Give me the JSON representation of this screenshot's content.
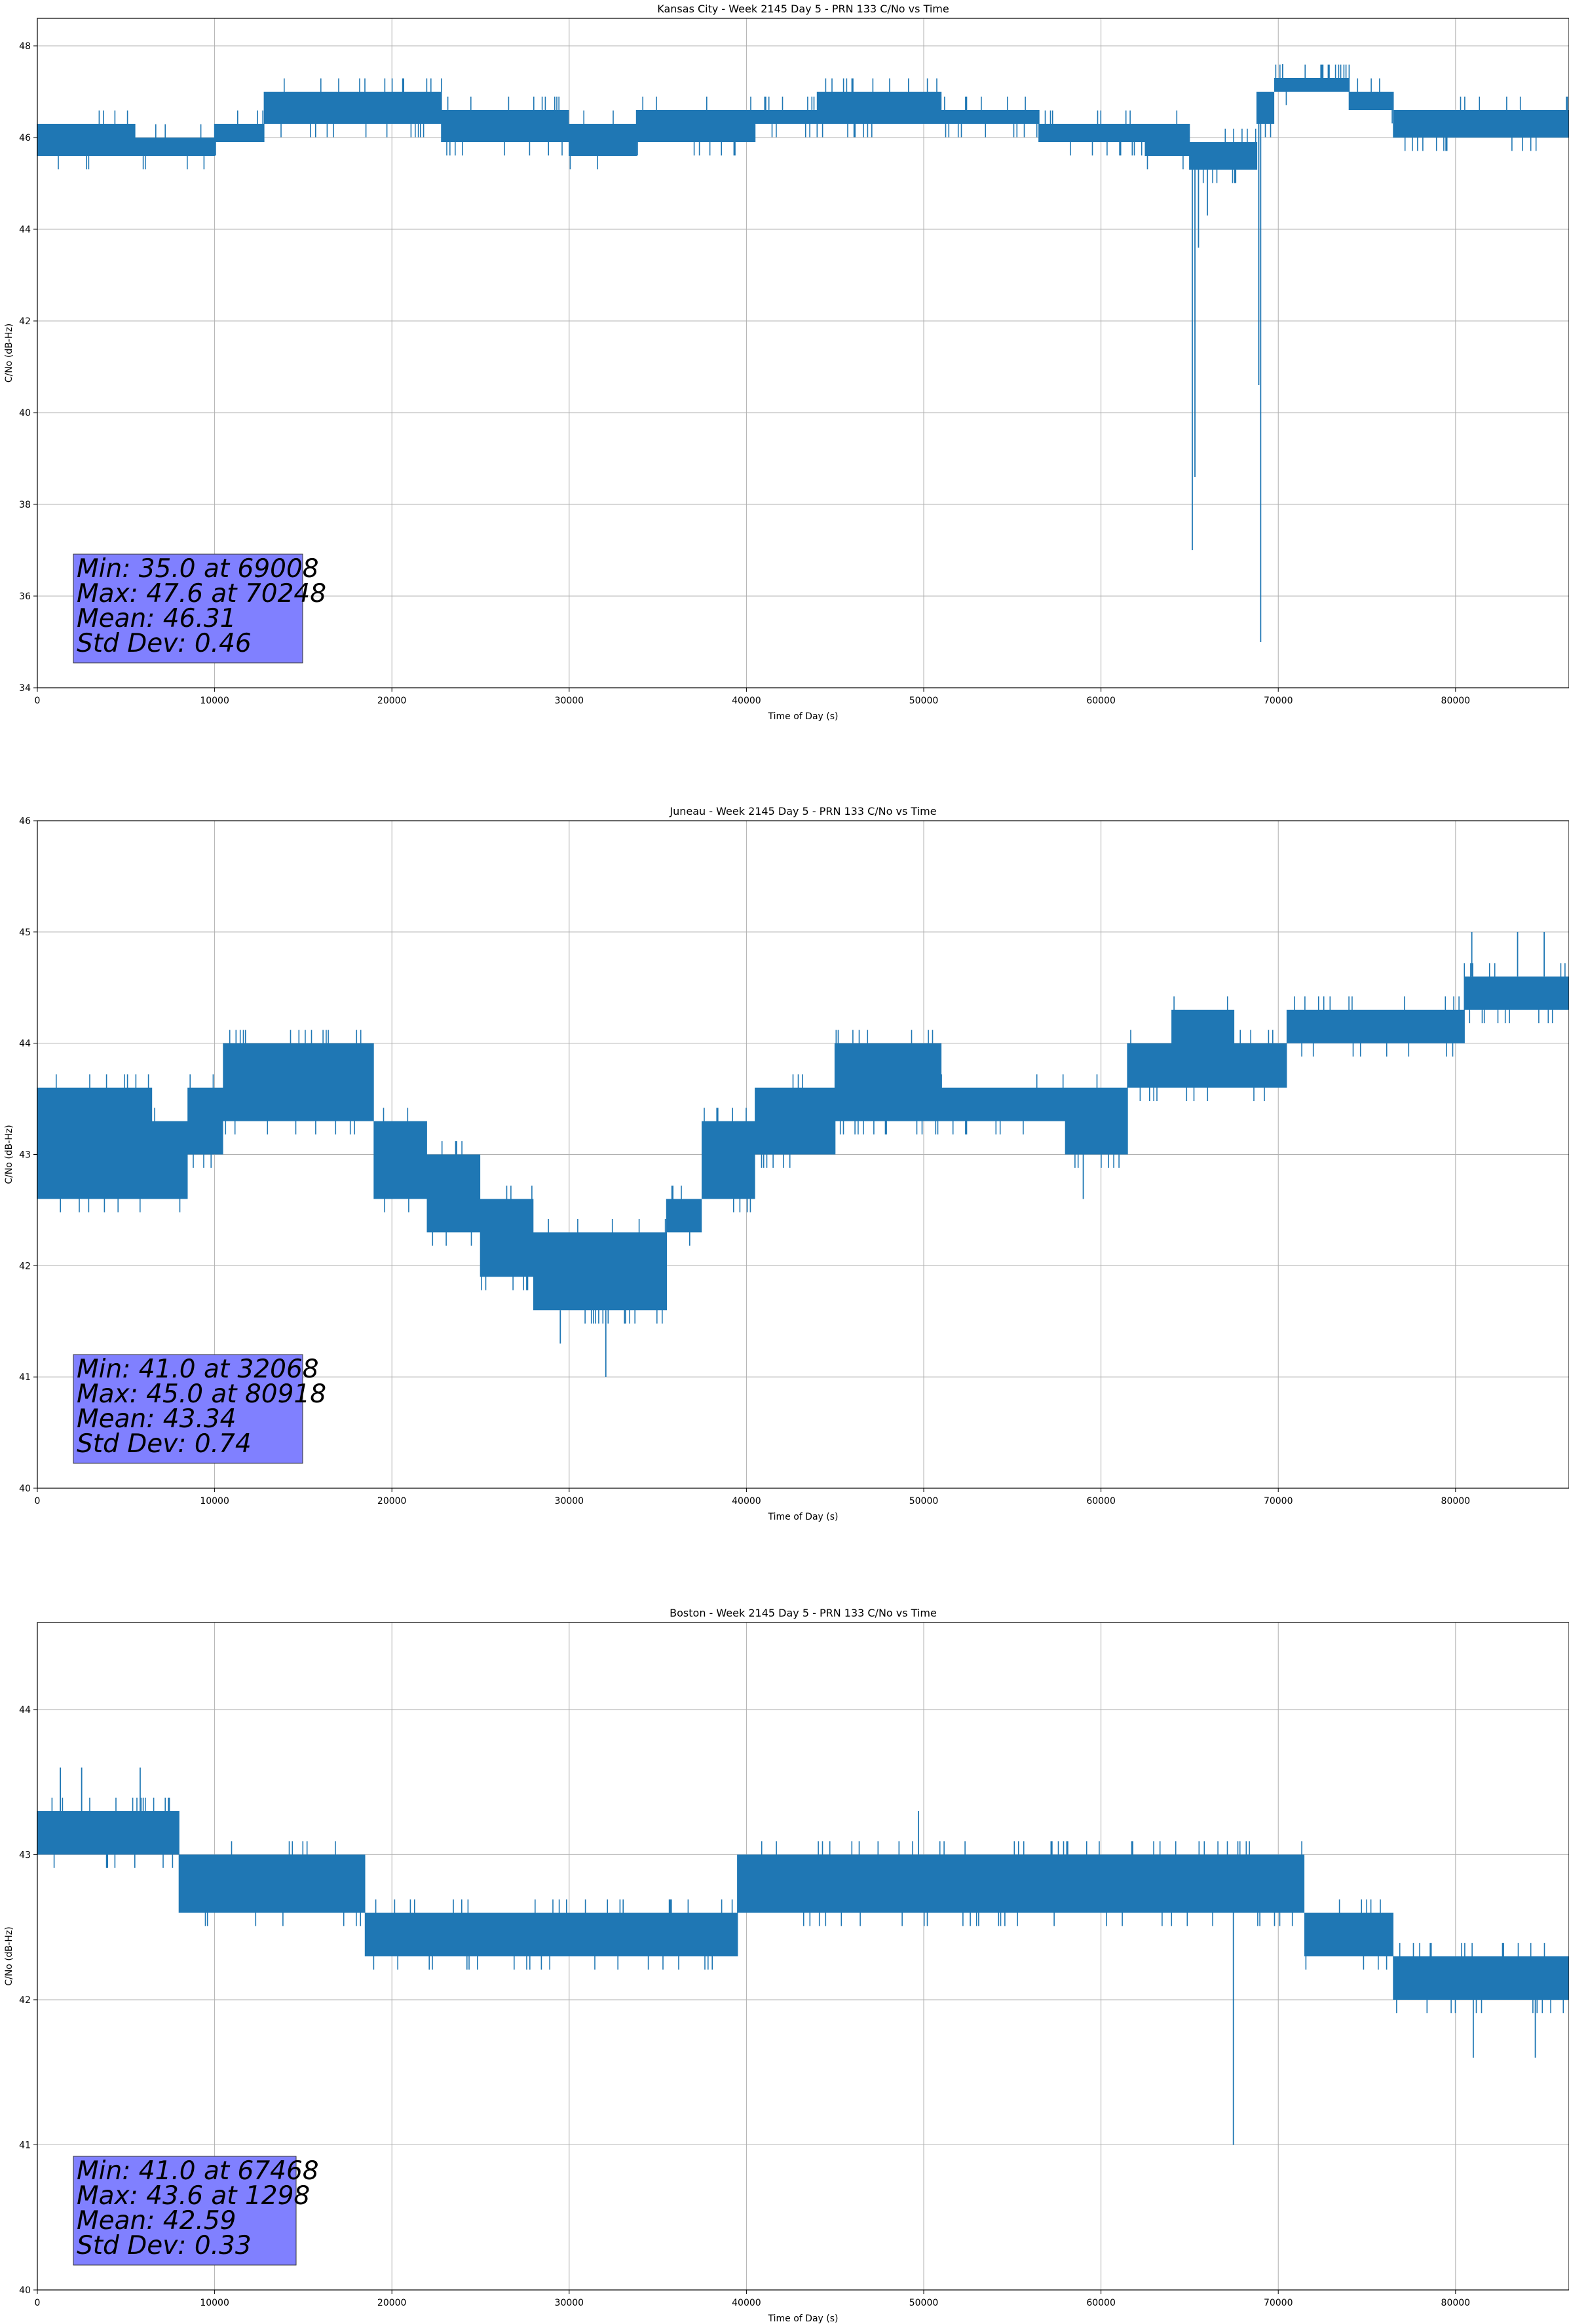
{
  "chart_data": [
    {
      "type": "line",
      "title": "Kansas City - Week 2145 Day 5 - PRN 133 C/No vs Time",
      "xlabel": "Time of Day (s)",
      "ylabel": "C/No (dB-Hz)",
      "xlim": [
        0,
        86400
      ],
      "ylim": [
        34,
        48.6
      ],
      "xticks": [
        0,
        10000,
        20000,
        30000,
        40000,
        50000,
        60000,
        70000,
        80000
      ],
      "yticks": [
        34,
        36,
        38,
        40,
        42,
        44,
        46,
        48
      ],
      "grid": true,
      "series_color": "#1f77b4",
      "base_levels": [
        {
          "start": 0,
          "end": 5500,
          "low": 45.6,
          "high": 46.3
        },
        {
          "start": 5500,
          "end": 10000,
          "low": 45.6,
          "high": 46.0
        },
        {
          "start": 10000,
          "end": 12800,
          "low": 45.9,
          "high": 46.3
        },
        {
          "start": 12800,
          "end": 22800,
          "low": 46.3,
          "high": 47.0
        },
        {
          "start": 22800,
          "end": 30000,
          "low": 45.9,
          "high": 46.6
        },
        {
          "start": 30000,
          "end": 33800,
          "low": 45.6,
          "high": 46.3
        },
        {
          "start": 33800,
          "end": 40500,
          "low": 45.9,
          "high": 46.6
        },
        {
          "start": 40500,
          "end": 44000,
          "low": 46.3,
          "high": 46.6
        },
        {
          "start": 44000,
          "end": 51000,
          "low": 46.3,
          "high": 47.0
        },
        {
          "start": 51000,
          "end": 56500,
          "low": 46.3,
          "high": 46.6
        },
        {
          "start": 56500,
          "end": 62500,
          "low": 45.9,
          "high": 46.3
        },
        {
          "start": 62500,
          "end": 65000,
          "low": 45.6,
          "high": 46.3
        },
        {
          "start": 65000,
          "end": 68800,
          "low": 45.3,
          "high": 45.9
        },
        {
          "start": 68800,
          "end": 69800,
          "low": 46.3,
          "high": 47.0
        },
        {
          "start": 69800,
          "end": 74000,
          "low": 47.0,
          "high": 47.3
        },
        {
          "start": 74000,
          "end": 76500,
          "low": 46.6,
          "high": 47.0
        },
        {
          "start": 76500,
          "end": 86400,
          "low": 46.0,
          "high": 46.6
        }
      ],
      "dips": [
        {
          "x": 65150,
          "value": 37.0
        },
        {
          "x": 65300,
          "value": 38.6
        },
        {
          "x": 65500,
          "value": 43.6
        },
        {
          "x": 66000,
          "value": 44.3
        },
        {
          "x": 68900,
          "value": 40.6
        },
        {
          "x": 69008,
          "value": 35.0
        }
      ],
      "peaks": [
        {
          "x": 70248,
          "value": 47.6
        }
      ],
      "stats_box": [
        "Min: 35.0 at 69008",
        "Max: 47.6 at 70248",
        "Mean: 46.31",
        "Std Dev: 0.46"
      ]
    },
    {
      "type": "line",
      "title": "Juneau - Week 2145 Day 5 - PRN 133 C/No vs Time",
      "xlabel": "Time of Day (s)",
      "ylabel": "C/No (dB-Hz)",
      "xlim": [
        0,
        86400
      ],
      "ylim": [
        40,
        46
      ],
      "xticks": [
        0,
        10000,
        20000,
        30000,
        40000,
        50000,
        60000,
        70000,
        80000
      ],
      "yticks": [
        40,
        41,
        42,
        43,
        44,
        45,
        46
      ],
      "grid": true,
      "series_color": "#1f77b4",
      "base_levels": [
        {
          "start": 0,
          "end": 6500,
          "low": 42.6,
          "high": 43.6
        },
        {
          "start": 6500,
          "end": 8500,
          "low": 42.6,
          "high": 43.3
        },
        {
          "start": 8500,
          "end": 10500,
          "low": 43.0,
          "high": 43.6
        },
        {
          "start": 10500,
          "end": 19000,
          "low": 43.3,
          "high": 44.0
        },
        {
          "start": 19000,
          "end": 22000,
          "low": 42.6,
          "high": 43.3
        },
        {
          "start": 22000,
          "end": 25000,
          "low": 42.3,
          "high": 43.0
        },
        {
          "start": 25000,
          "end": 28000,
          "low": 41.9,
          "high": 42.6
        },
        {
          "start": 28000,
          "end": 33000,
          "low": 41.6,
          "high": 42.3
        },
        {
          "start": 33000,
          "end": 35500,
          "low": 41.6,
          "high": 42.3
        },
        {
          "start": 35500,
          "end": 37500,
          "low": 42.3,
          "high": 42.6
        },
        {
          "start": 37500,
          "end": 40500,
          "low": 42.6,
          "high": 43.3
        },
        {
          "start": 40500,
          "end": 45000,
          "low": 43.0,
          "high": 43.6
        },
        {
          "start": 45000,
          "end": 51000,
          "low": 43.3,
          "high": 44.0
        },
        {
          "start": 51000,
          "end": 58000,
          "low": 43.3,
          "high": 43.6
        },
        {
          "start": 58000,
          "end": 61500,
          "low": 43.0,
          "high": 43.6
        },
        {
          "start": 61500,
          "end": 64000,
          "low": 43.6,
          "high": 44.0
        },
        {
          "start": 64000,
          "end": 67500,
          "low": 43.6,
          "high": 44.3
        },
        {
          "start": 67500,
          "end": 70500,
          "low": 43.6,
          "high": 44.0
        },
        {
          "start": 70500,
          "end": 80500,
          "low": 44.0,
          "high": 44.3
        },
        {
          "start": 80500,
          "end": 86400,
          "low": 44.3,
          "high": 44.6
        }
      ],
      "dips": [
        {
          "x": 29500,
          "value": 41.3
        },
        {
          "x": 32068,
          "value": 41.0
        },
        {
          "x": 59000,
          "value": 42.6
        }
      ],
      "peaks": [
        {
          "x": 80918,
          "value": 45.0
        },
        {
          "x": 83500,
          "value": 45.0
        },
        {
          "x": 85000,
          "value": 45.0
        }
      ],
      "stats_box": [
        "Min: 41.0 at 32068",
        "Max: 45.0 at 80918",
        "Mean: 43.34",
        "Std Dev: 0.74"
      ]
    },
    {
      "type": "line",
      "title": "Boston - Week 2145 Day 5 - PRN 133 C/No vs Time",
      "xlabel": "Time of Day (s)",
      "ylabel": "C/No (dB-Hz)",
      "xlim": [
        0,
        86400
      ],
      "ylim": [
        40,
        44.6
      ],
      "xticks": [
        0,
        10000,
        20000,
        30000,
        40000,
        50000,
        60000,
        70000,
        80000
      ],
      "yticks": [
        40,
        41,
        42,
        43,
        44
      ],
      "grid": true,
      "series_color": "#1f77b4",
      "base_levels": [
        {
          "start": 0,
          "end": 8000,
          "low": 43.0,
          "high": 43.3
        },
        {
          "start": 8000,
          "end": 18500,
          "low": 42.6,
          "high": 43.0
        },
        {
          "start": 18500,
          "end": 39500,
          "low": 42.3,
          "high": 42.6
        },
        {
          "start": 39500,
          "end": 65000,
          "low": 42.6,
          "high": 43.0
        },
        {
          "start": 65000,
          "end": 71500,
          "low": 42.6,
          "high": 43.0
        },
        {
          "start": 71500,
          "end": 76500,
          "low": 42.3,
          "high": 42.6
        },
        {
          "start": 76500,
          "end": 86400,
          "low": 42.0,
          "high": 42.3
        }
      ],
      "dips": [
        {
          "x": 67468,
          "value": 41.0
        },
        {
          "x": 81000,
          "value": 41.6
        },
        {
          "x": 84500,
          "value": 41.6
        }
      ],
      "peaks": [
        {
          "x": 1298,
          "value": 43.6
        },
        {
          "x": 2500,
          "value": 43.6
        },
        {
          "x": 5800,
          "value": 43.6
        },
        {
          "x": 49700,
          "value": 43.3
        }
      ],
      "stats_box": [
        "Min: 41.0 at 67468",
        "Max: 43.6 at 1298",
        "Mean: 42.59",
        "Std Dev: 0.33"
      ]
    }
  ]
}
